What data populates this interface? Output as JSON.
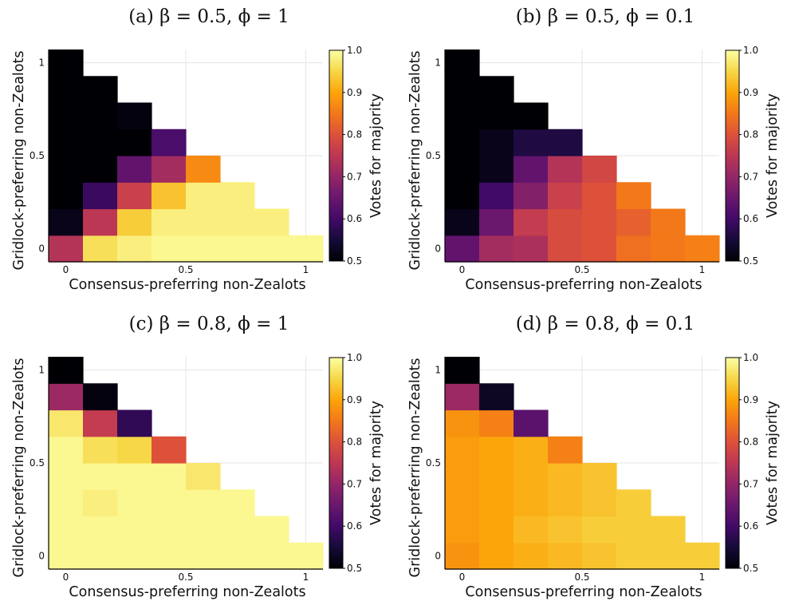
{
  "colorbar": {
    "label": "Votes for majority",
    "ticks": [
      "0.5",
      "0.6",
      "0.7",
      "0.8",
      "0.9",
      "1.0"
    ],
    "tick_values": [
      0.5,
      0.6,
      0.7,
      0.8,
      0.9,
      1.0
    ],
    "colormap": "inferno",
    "range": [
      0.5,
      1.0
    ]
  },
  "chart_data": [
    {
      "type": "heatmap",
      "title": "(a) β = 0.5, ϕ = 1",
      "xlabel": "Consensus-preferring non-Zealots",
      "ylabel": "Gridlock-preferring non-Zealots",
      "x_ticks": [
        "0",
        "0.5",
        "1"
      ],
      "y_ticks": [
        "0",
        "0.5",
        "1"
      ],
      "x": [
        0,
        0.143,
        0.286,
        0.429,
        0.571,
        0.714,
        0.857,
        1
      ],
      "y": [
        0,
        0.143,
        0.286,
        0.429,
        0.571,
        0.714,
        0.857,
        1
      ],
      "grid": true,
      "values": [
        [
          0.74,
          0.96,
          0.98,
          0.99,
          0.99,
          0.99,
          0.99,
          0.99
        ],
        [
          0.52,
          0.75,
          0.94,
          0.98,
          0.98,
          0.98,
          0.98,
          null
        ],
        [
          0.5,
          0.59,
          0.77,
          0.93,
          0.98,
          0.98,
          null,
          null
        ],
        [
          0.5,
          0.5,
          0.64,
          0.72,
          0.87,
          null,
          null,
          null
        ],
        [
          0.5,
          0.5,
          0.5,
          0.61,
          null,
          null,
          null,
          null
        ],
        [
          0.5,
          0.5,
          0.51,
          null,
          null,
          null,
          null,
          null
        ],
        [
          0.5,
          0.5,
          null,
          null,
          null,
          null,
          null,
          null
        ],
        [
          0.5,
          null,
          null,
          null,
          null,
          null,
          null,
          null
        ]
      ]
    },
    {
      "type": "heatmap",
      "title": "(b) β = 0.5, ϕ = 0.1",
      "xlabel": "Consensus-preferring non-Zealots",
      "ylabel": "Gridlock-preferring non-Zealots",
      "x_ticks": [
        "0",
        "0.5",
        "1"
      ],
      "y_ticks": [
        "0",
        "0.5",
        "1"
      ],
      "x": [
        0,
        0.143,
        0.286,
        0.429,
        0.571,
        0.714,
        0.857,
        1
      ],
      "y": [
        0,
        0.143,
        0.286,
        0.429,
        0.571,
        0.714,
        0.857,
        1
      ],
      "grid": true,
      "values": [
        [
          0.64,
          0.72,
          0.73,
          0.79,
          0.8,
          0.84,
          0.85,
          0.86
        ],
        [
          0.52,
          0.65,
          0.76,
          0.79,
          0.8,
          0.82,
          0.85,
          null
        ],
        [
          0.5,
          0.6,
          0.68,
          0.77,
          0.8,
          0.85,
          null,
          null
        ],
        [
          0.5,
          0.52,
          0.64,
          0.74,
          0.78,
          null,
          null,
          null
        ],
        [
          0.5,
          0.52,
          0.56,
          0.56,
          null,
          null,
          null,
          null
        ],
        [
          0.5,
          0.5,
          0.5,
          null,
          null,
          null,
          null,
          null
        ],
        [
          0.5,
          0.5,
          null,
          null,
          null,
          null,
          null,
          null
        ],
        [
          0.5,
          null,
          null,
          null,
          null,
          null,
          null,
          null
        ]
      ]
    },
    {
      "type": "heatmap",
      "title": "(c) β = 0.8, ϕ = 1",
      "xlabel": "Consensus-preferring non-Zealots",
      "ylabel": "Gridlock-preferring non-Zealots",
      "x_ticks": [
        "0",
        "0.5",
        "1"
      ],
      "y_ticks": [
        "0",
        "0.5",
        "1"
      ],
      "x": [
        0,
        0.143,
        0.286,
        0.429,
        0.571,
        0.714,
        0.857,
        1
      ],
      "y": [
        0,
        0.143,
        0.286,
        0.429,
        0.571,
        0.714,
        0.857,
        1
      ],
      "grid": true,
      "values": [
        [
          0.99,
          0.99,
          0.99,
          0.99,
          0.99,
          0.99,
          0.99,
          0.99
        ],
        [
          0.99,
          0.99,
          0.99,
          0.99,
          0.99,
          0.99,
          0.99,
          null
        ],
        [
          0.99,
          0.98,
          0.99,
          0.99,
          0.99,
          0.99,
          null,
          null
        ],
        [
          0.99,
          0.99,
          0.99,
          0.99,
          0.97,
          null,
          null,
          null
        ],
        [
          0.99,
          0.96,
          0.95,
          0.8,
          null,
          null,
          null,
          null
        ],
        [
          0.97,
          0.76,
          0.58,
          null,
          null,
          null,
          null,
          null
        ],
        [
          0.71,
          0.51,
          null,
          null,
          null,
          null,
          null,
          null
        ],
        [
          0.5,
          null,
          null,
          null,
          null,
          null,
          null,
          null
        ]
      ]
    },
    {
      "type": "heatmap",
      "title": "(d) β = 0.8, ϕ = 0.1",
      "xlabel": "Consensus-preferring non-Zealots",
      "ylabel": "Gridlock-preferring non-Zealots",
      "x_ticks": [
        "0",
        "0.5",
        "1"
      ],
      "y_ticks": [
        "0",
        "0.5",
        "1"
      ],
      "x": [
        0,
        0.143,
        0.286,
        0.429,
        0.571,
        0.714,
        0.857,
        1
      ],
      "y": [
        0,
        0.143,
        0.286,
        0.429,
        0.571,
        0.714,
        0.857,
        1
      ],
      "grid": true,
      "values": [
        [
          0.88,
          0.9,
          0.91,
          0.92,
          0.93,
          0.94,
          0.94,
          0.94
        ],
        [
          0.89,
          0.9,
          0.92,
          0.93,
          0.94,
          0.94,
          0.94,
          null
        ],
        [
          0.89,
          0.9,
          0.91,
          0.92,
          0.93,
          0.94,
          null,
          null
        ],
        [
          0.89,
          0.9,
          0.91,
          0.92,
          0.93,
          null,
          null,
          null
        ],
        [
          0.89,
          0.9,
          0.91,
          0.86,
          null,
          null,
          null,
          null
        ],
        [
          0.88,
          0.86,
          0.63,
          null,
          null,
          null,
          null,
          null
        ],
        [
          0.71,
          0.53,
          null,
          null,
          null,
          null,
          null,
          null
        ],
        [
          0.5,
          null,
          null,
          null,
          null,
          null,
          null,
          null
        ]
      ]
    }
  ]
}
